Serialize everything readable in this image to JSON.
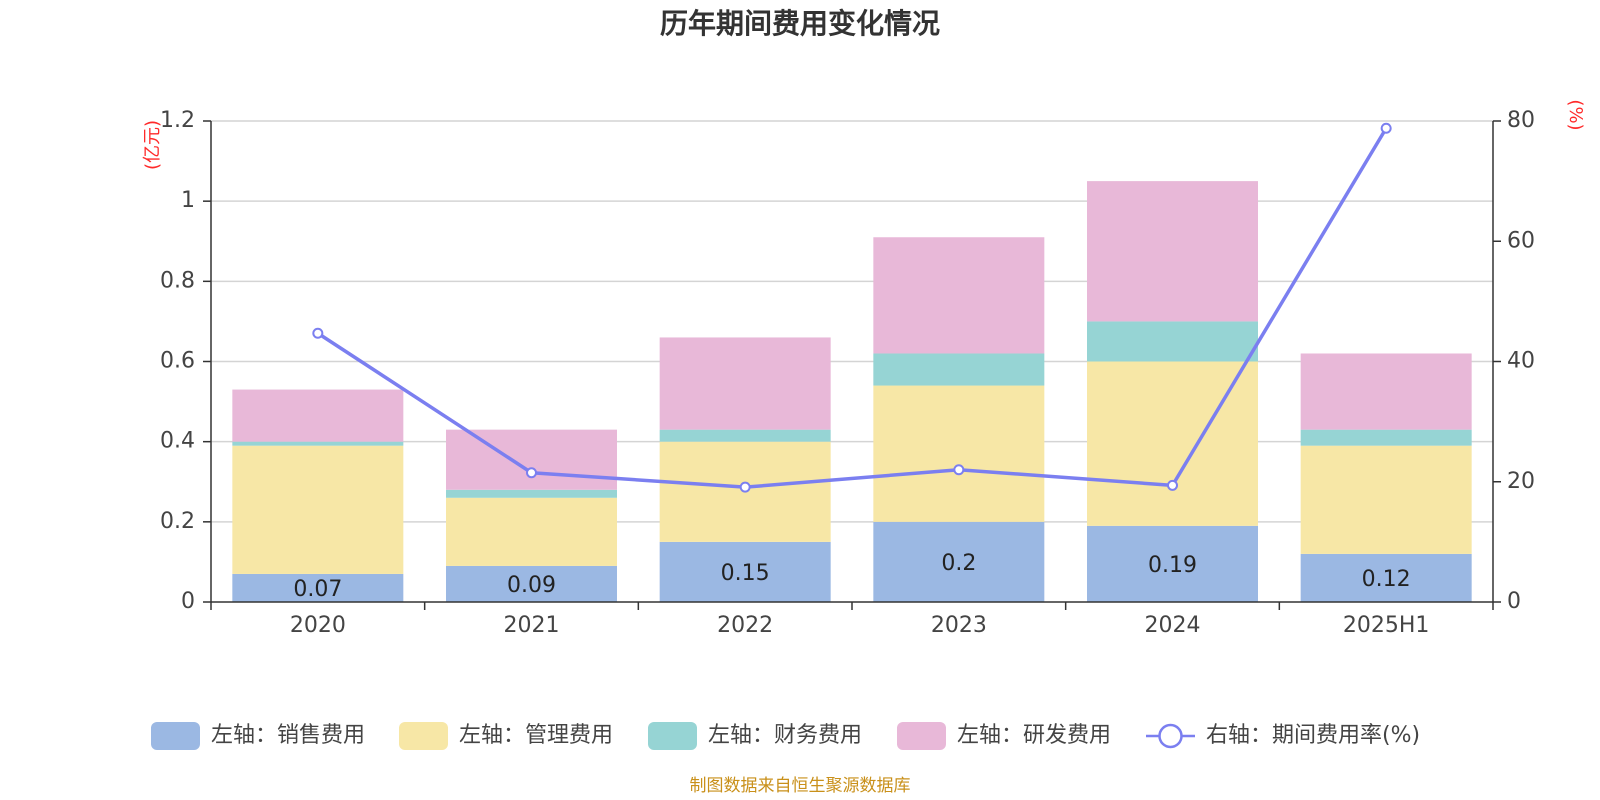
{
  "chart_data": {
    "type": "bar",
    "title": "历年期间费用变化情况",
    "categories": [
      "2020",
      "2021",
      "2022",
      "2023",
      "2024",
      "2025H1"
    ],
    "left_axis": {
      "unit": "(亿元)",
      "ylim": [
        0,
        1.2
      ],
      "ticks": [
        "0",
        "0.2",
        "0.4",
        "0.6",
        "0.8",
        "1",
        "1.2"
      ]
    },
    "right_axis": {
      "unit": "(%)",
      "ylim": [
        0,
        80
      ],
      "ticks": [
        "0",
        "20",
        "40",
        "60",
        "80"
      ]
    },
    "stacked": true,
    "grid": true,
    "legend_position": "bottom",
    "series": [
      {
        "name": "左轴：销售费用",
        "axis": "left",
        "color": "#9bb8e3",
        "values": [
          0.07,
          0.09,
          0.15,
          0.2,
          0.19,
          0.12
        ],
        "labels": [
          "0.07",
          "0.09",
          "0.15",
          "0.2",
          "0.19",
          "0.12"
        ]
      },
      {
        "name": "左轴：管理费用",
        "axis": "left",
        "color": "#f7e7a6",
        "values": [
          0.32,
          0.17,
          0.25,
          0.34,
          0.41,
          0.27
        ]
      },
      {
        "name": "左轴：财务费用",
        "axis": "left",
        "color": "#96d4d4",
        "values": [
          0.01,
          0.02,
          0.03,
          0.08,
          0.1,
          0.04
        ]
      },
      {
        "name": "左轴：研发费用",
        "axis": "left",
        "color": "#e8b8d8",
        "values": [
          0.13,
          0.15,
          0.23,
          0.29,
          0.35,
          0.19
        ]
      },
      {
        "name": "右轴：期间费用率(%)",
        "axis": "right",
        "type": "line",
        "color": "#7b7ff0",
        "values": [
          44.7,
          21.5,
          19.1,
          22.0,
          19.4,
          78.8
        ]
      }
    ]
  },
  "source": "制图数据来自恒生聚源数据库"
}
